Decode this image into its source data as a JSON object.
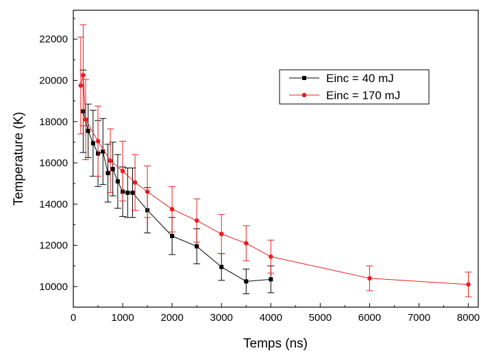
{
  "chart_data": {
    "type": "scatter",
    "title": "",
    "xlabel": "Temps (ns)",
    "ylabel": "Temperature (K)",
    "xlim": [
      0,
      8200
    ],
    "ylim": [
      9000,
      23400
    ],
    "xticks": [
      0,
      1000,
      2000,
      3000,
      4000,
      5000,
      6000,
      7000,
      8000
    ],
    "yticks": [
      10000,
      12000,
      14000,
      16000,
      18000,
      20000,
      22000
    ],
    "grid": false,
    "legend_position": "top-right",
    "series": [
      {
        "name": "Einc = 40 mJ",
        "color": "#000000",
        "marker": "square",
        "points": [
          {
            "x": 200,
            "y": 18500,
            "err": 2000
          },
          {
            "x": 300,
            "y": 17550,
            "err": 1300
          },
          {
            "x": 400,
            "y": 16950,
            "err": 1600
          },
          {
            "x": 500,
            "y": 16450,
            "err": 1600
          },
          {
            "x": 600,
            "y": 16550,
            "err": 1600
          },
          {
            "x": 700,
            "y": 15500,
            "err": 1400
          },
          {
            "x": 800,
            "y": 15700,
            "err": 1300
          },
          {
            "x": 900,
            "y": 15100,
            "err": 1300
          },
          {
            "x": 1000,
            "y": 14600,
            "err": 1200
          },
          {
            "x": 1100,
            "y": 14550,
            "err": 1200
          },
          {
            "x": 1200,
            "y": 14550,
            "err": 1200
          },
          {
            "x": 1500,
            "y": 13700,
            "err": 1100
          },
          {
            "x": 2000,
            "y": 12450,
            "err": 900
          },
          {
            "x": 2500,
            "y": 11950,
            "err": 850
          },
          {
            "x": 3000,
            "y": 10950,
            "err": 650
          },
          {
            "x": 3500,
            "y": 10250,
            "err": 600
          },
          {
            "x": 4000,
            "y": 10350,
            "err": 650
          }
        ]
      },
      {
        "name": "Einc = 170 mJ",
        "color": "#ee1c1c",
        "marker": "circle",
        "points": [
          {
            "x": 150,
            "y": 19750,
            "err": 2350
          },
          {
            "x": 200,
            "y": 20250,
            "err": 2450
          },
          {
            "x": 250,
            "y": 18100,
            "err": 1950
          },
          {
            "x": 500,
            "y": 17050,
            "err": 1700
          },
          {
            "x": 750,
            "y": 16100,
            "err": 1550
          },
          {
            "x": 1000,
            "y": 15600,
            "err": 1450
          },
          {
            "x": 1250,
            "y": 15050,
            "err": 1350
          },
          {
            "x": 1500,
            "y": 14600,
            "err": 1250
          },
          {
            "x": 2000,
            "y": 13750,
            "err": 1100
          },
          {
            "x": 2500,
            "y": 13200,
            "err": 1050
          },
          {
            "x": 3000,
            "y": 12550,
            "err": 950
          },
          {
            "x": 3500,
            "y": 12100,
            "err": 850
          },
          {
            "x": 4000,
            "y": 11450,
            "err": 800
          },
          {
            "x": 6000,
            "y": 10400,
            "err": 600
          },
          {
            "x": 8000,
            "y": 10100,
            "err": 600
          }
        ]
      }
    ]
  }
}
